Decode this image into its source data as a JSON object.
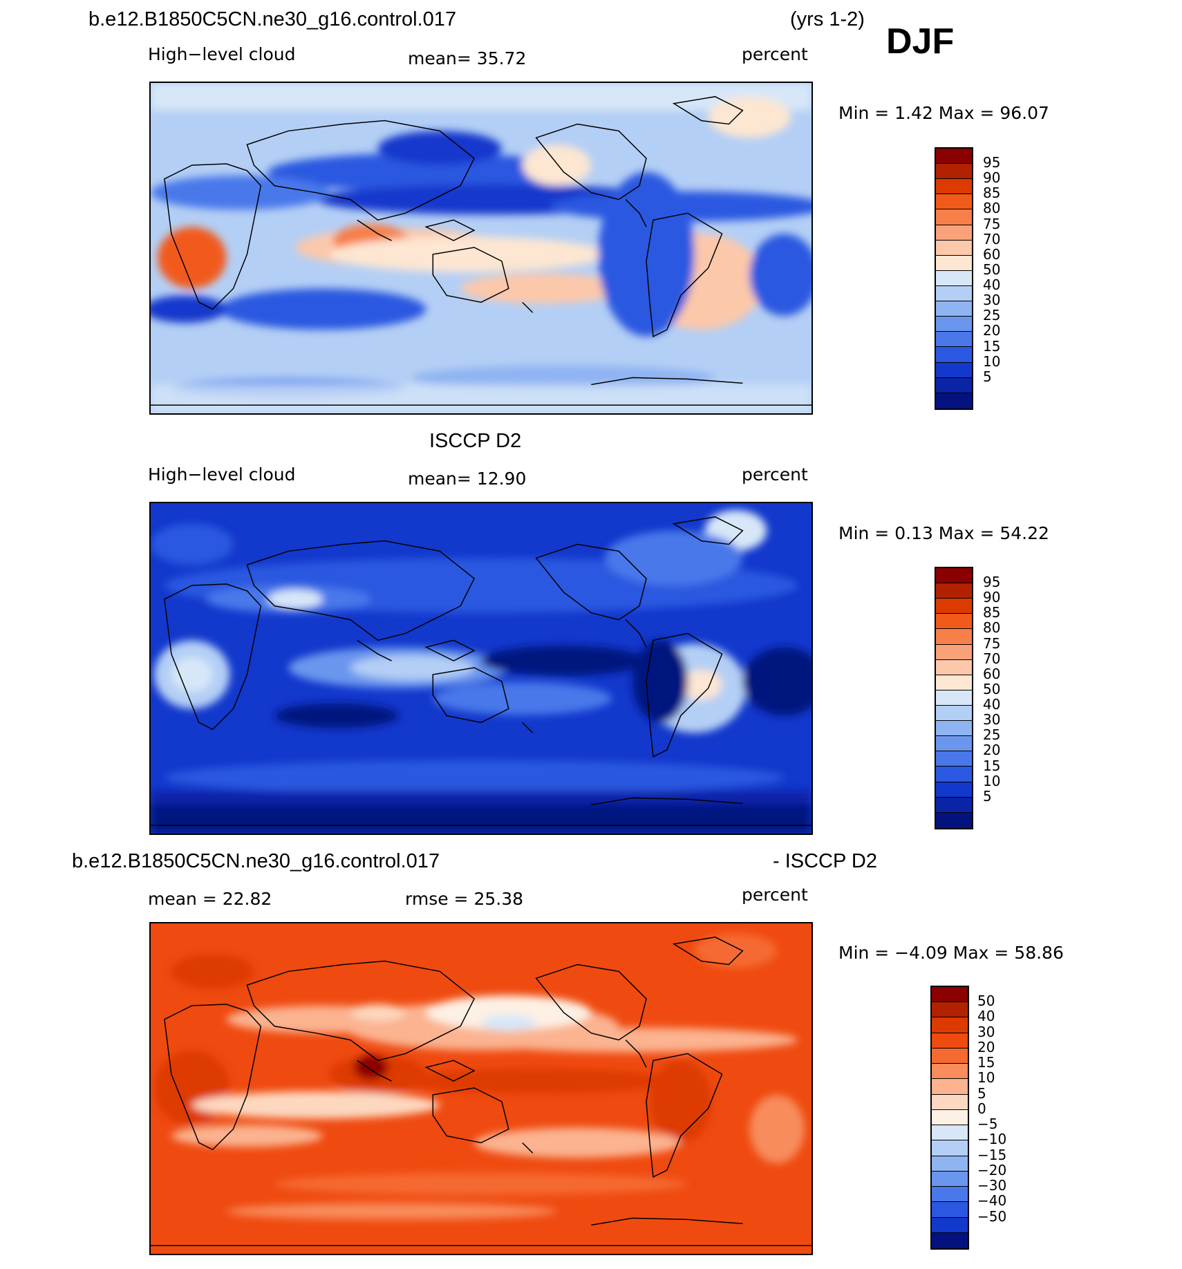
{
  "figure": {
    "case_name": "b.e12.B1850C5CN.ne30_g16.control.017",
    "years": "(yrs 1-2)",
    "season": "DJF"
  },
  "panel1": {
    "left_label": "High−level cloud",
    "mean_label": "mean=   35.72",
    "units": "percent",
    "minmax": "Min =    1.42 Max =   96.07",
    "colorbar": {
      "colors": [
        "#8b0000",
        "#b22200",
        "#dd3a00",
        "#f25a1a",
        "#f77f4a",
        "#f9a27a",
        "#fcc8aa",
        "#fde6d2",
        "#d7e7f8",
        "#b4cff5",
        "#8fb4f2",
        "#6b96ee",
        "#4a78eb",
        "#2a58e0",
        "#1238cc",
        "#0a24a8",
        "#04127f"
      ],
      "ticks": [
        "95",
        "90",
        "85",
        "80",
        "75",
        "70",
        "60",
        "50",
        "40",
        "30",
        "25",
        "20",
        "15",
        "10",
        "5"
      ]
    }
  },
  "panel2": {
    "title": "ISCCP D2",
    "left_label": "High−level cloud",
    "mean_label": "mean=   12.90",
    "units": "percent",
    "minmax": "Min =    0.13 Max =   54.22",
    "colorbar": {
      "colors": [
        "#8b0000",
        "#b22200",
        "#dd3a00",
        "#f25a1a",
        "#f77f4a",
        "#f9a27a",
        "#fcc8aa",
        "#fde6d2",
        "#d7e7f8",
        "#b4cff5",
        "#8fb4f2",
        "#6b96ee",
        "#4a78eb",
        "#2a58e0",
        "#1238cc",
        "#0a24a8",
        "#04127f"
      ],
      "ticks": [
        "95",
        "90",
        "85",
        "80",
        "75",
        "70",
        "60",
        "50",
        "40",
        "30",
        "25",
        "20",
        "15",
        "10",
        "5"
      ]
    }
  },
  "panel3": {
    "title_left": "b.e12.B1850C5CN.ne30_g16.control.017",
    "title_right": "- ISCCP D2",
    "mean_label": "mean =   22.82",
    "rmse_label": "rmse =   25.38",
    "units": "percent",
    "minmax": "Min =  −4.09 Max =   58.86",
    "colorbar": {
      "colors": [
        "#8b0000",
        "#b22200",
        "#dd3a00",
        "#ef4a10",
        "#f56a30",
        "#f88c5c",
        "#fbb390",
        "#fdd8c0",
        "#fdf0e4",
        "#d7e7f8",
        "#b4cff5",
        "#8fb4f2",
        "#6b96ee",
        "#4a78eb",
        "#2a58e0",
        "#1238cc",
        "#04127f"
      ],
      "ticks": [
        "50",
        "40",
        "30",
        "20",
        "15",
        "10",
        "5",
        "0",
        "−5",
        "−10",
        "−15",
        "−20",
        "−30",
        "−40",
        "−50"
      ]
    }
  }
}
